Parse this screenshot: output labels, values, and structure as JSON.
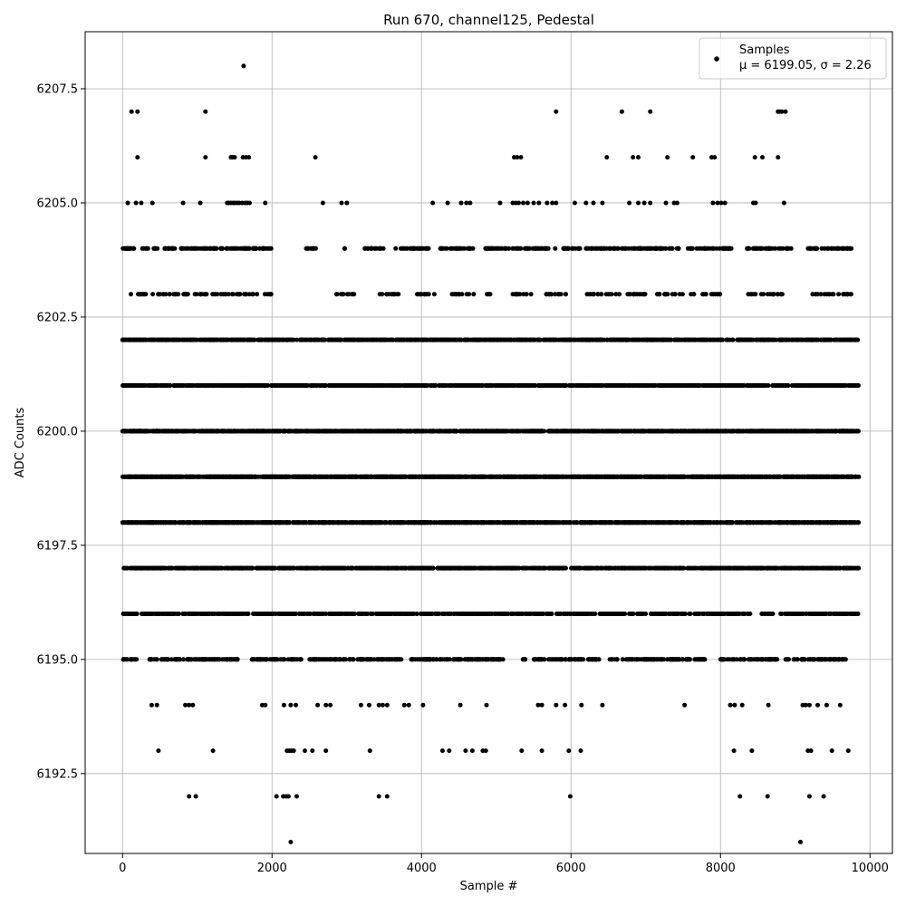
{
  "chart_data": {
    "type": "scatter",
    "title": "Run 670, channel125, Pedestal",
    "xlabel": "Sample #",
    "ylabel": "ADC Counts",
    "xlim": [
      -500,
      10300
    ],
    "ylim": [
      6190.75,
      6208.75
    ],
    "xticks": [
      0,
      2000,
      4000,
      6000,
      8000,
      10000
    ],
    "xtick_labels": [
      "0",
      "2000",
      "4000",
      "6000",
      "8000",
      "10000"
    ],
    "yticks": [
      6192.5,
      6195.0,
      6197.5,
      6200.0,
      6202.5,
      6205.0,
      6207.5
    ],
    "ytick_labels": [
      "6192.5",
      "6195.0",
      "6197.5",
      "6200.0",
      "6202.5",
      "6205.0",
      "6207.5"
    ],
    "grid": true,
    "legend_position": "top-right",
    "series": [
      {
        "name": "Samples",
        "stats_label_mu": "μ = 6199.05",
        "stats_label_sigma": "σ = 2.26",
        "color": "#000000",
        "marker": "circle",
        "n_samples": 9850,
        "levels": [
          {
            "y": 6191,
            "x": [
              2250,
              9070
            ]
          },
          {
            "y": 6192,
            "x": [
              890,
              980,
              2060,
              2150,
              2190,
              2220,
              2330,
              3430,
              3540,
              5990,
              8260,
              8630,
              9190,
              9380
            ]
          },
          {
            "y": 6193,
            "x": [
              480,
              1210,
              2200,
              2230,
              2260,
              2290,
              2440,
              2540,
              2720,
              3310,
              4280,
              4370,
              4590,
              4680,
              4820,
              4860,
              5340,
              5610,
              5970,
              6130,
              8180,
              8420,
              9170,
              9210,
              9490,
              9710
            ]
          },
          {
            "y": 6194,
            "x": [
              390,
              460,
              840,
              890,
              940,
              1870,
              1910,
              2160,
              2250,
              2320,
              2610,
              2720,
              2780,
              3190,
              3300,
              3430,
              3480,
              3540,
              3770,
              3830,
              4020,
              4520,
              4870,
              5560,
              5610,
              5800,
              5920,
              6140,
              6420,
              7520,
              8130,
              8190,
              8290,
              8640,
              9100,
              9140,
              9190,
              9300,
              9420,
              9600
            ]
          },
          {
            "y": 6195,
            "x_ranges": [
              [
                0,
                200
              ],
              [
                350,
                1550
              ],
              [
                1700,
                2400
              ],
              [
                2500,
                5100
              ],
              [
                5350,
                5400
              ],
              [
                5500,
                6400
              ],
              [
                6500,
                7800
              ],
              [
                8000,
                8800
              ],
              [
                8850,
                9700
              ]
            ],
            "count": 640
          },
          {
            "y": 6196,
            "x_ranges": [
              [
                0,
                200
              ],
              [
                250,
                1700
              ],
              [
                1750,
                7000
              ],
              [
                7050,
                8400
              ],
              [
                8550,
                8700
              ],
              [
                8800,
                9850
              ]
            ],
            "count": 880
          },
          {
            "y": 6197,
            "x_ranges": [
              [
                0,
                9850
              ]
            ],
            "count": 1300
          },
          {
            "y": 6198,
            "x_ranges": [
              [
                0,
                9850
              ]
            ],
            "count": 1500
          },
          {
            "y": 6199,
            "x_ranges": [
              [
                0,
                9850
              ]
            ],
            "count": 1700
          },
          {
            "y": 6200,
            "x_ranges": [
              [
                0,
                9850
              ]
            ],
            "count": 1900
          },
          {
            "y": 6201,
            "x_ranges": [
              [
                0,
                9850
              ]
            ],
            "count": 1500
          },
          {
            "y": 6202,
            "x_ranges": [
              [
                0,
                9850
              ]
            ],
            "count": 1300
          },
          {
            "y": 6203,
            "x_ranges": [
              [
                100,
                2000
              ],
              [
                2850,
                3100
              ],
              [
                3400,
                3700
              ],
              [
                3900,
                4200
              ],
              [
                4400,
                4700
              ],
              [
                4850,
                4950
              ],
              [
                5200,
                5500
              ],
              [
                5600,
                6000
              ],
              [
                6200,
                7000
              ],
              [
                7100,
                7500
              ],
              [
                7600,
                8000
              ],
              [
                8350,
                8850
              ],
              [
                9200,
                9750
              ]
            ],
            "count": 250
          },
          {
            "y": 6204,
            "x_ranges": [
              [
                0,
                2050
              ],
              [
                2450,
                2600
              ],
              [
                2950,
                3000
              ],
              [
                3200,
                3500
              ],
              [
                3650,
                4100
              ],
              [
                4250,
                4700
              ],
              [
                4850,
                5800
              ],
              [
                5900,
                7450
              ],
              [
                7550,
                8150
              ],
              [
                8350,
                8950
              ],
              [
                9150,
                9750
              ]
            ],
            "count": 500
          },
          {
            "y": 6205,
            "x": [
              70,
              180,
              250,
              400,
              810,
              1040,
              1400,
              1420,
              1450,
              1480,
              1500,
              1530,
              1560,
              1600,
              1640,
              1670,
              1700,
              1910,
              2680,
              2930,
              3000,
              4150,
              4350,
              4530,
              4600,
              4650,
              5050,
              5220,
              5260,
              5300,
              5360,
              5420,
              5500,
              5570,
              5680,
              5750,
              5800,
              6050,
              6200,
              6300,
              6420,
              6780,
              6900,
              6980,
              7060,
              7270,
              7380,
              7420,
              7900,
              7960,
              8010,
              8060,
              8440,
              8470,
              8850
            ]
          },
          {
            "y": 6206,
            "x": [
              200,
              1110,
              1450,
              1470,
              1500,
              1610,
              1650,
              1690,
              2580,
              5240,
              5280,
              5330,
              6480,
              6830,
              6900,
              7290,
              7630,
              7880,
              7920,
              8460,
              8560,
              8770
            ]
          },
          {
            "y": 6207,
            "x": [
              120,
              200,
              1110,
              5800,
              6680,
              7060,
              8770,
              8790,
              8820,
              8870
            ]
          },
          {
            "y": 6208,
            "x": [
              1620
            ]
          }
        ]
      }
    ]
  }
}
